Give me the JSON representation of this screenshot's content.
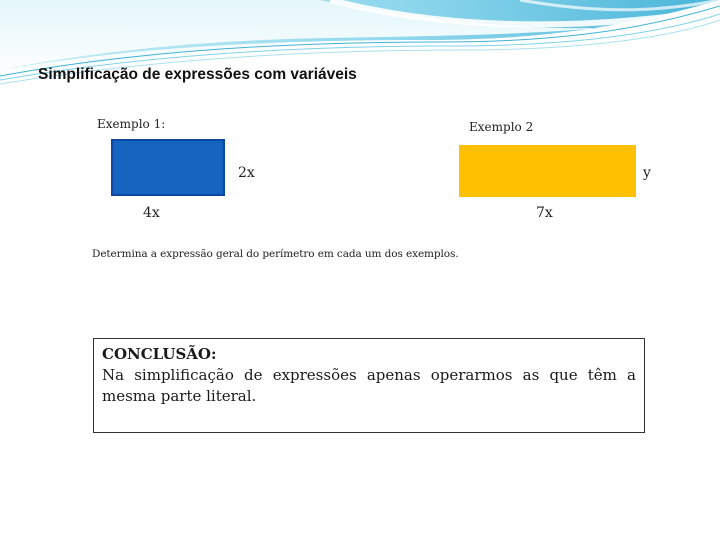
{
  "slide": {
    "title": "Simplificação de expressões com variáveis"
  },
  "example1": {
    "label": "Exemplo 1:",
    "width_label": "4x",
    "height_label": "2x",
    "color": "#1565C0",
    "border_color": "#0D47A1"
  },
  "example2": {
    "label": "Exemplo 2",
    "width_label": "7x",
    "height_label": "y",
    "color": "#FFC000"
  },
  "instruction": "Determina a expressão geral do perímetro em cada um dos exemplos.",
  "conclusion": {
    "heading": "CONCLUSÃO:",
    "text": "Na simplificação de expressões apenas operarmos as que têm a mesma parte literal."
  },
  "theme": {
    "wave_light": "#CDEFF6",
    "wave_mid": "#8ED8EB",
    "wave_dark": "#3FB2D6"
  }
}
